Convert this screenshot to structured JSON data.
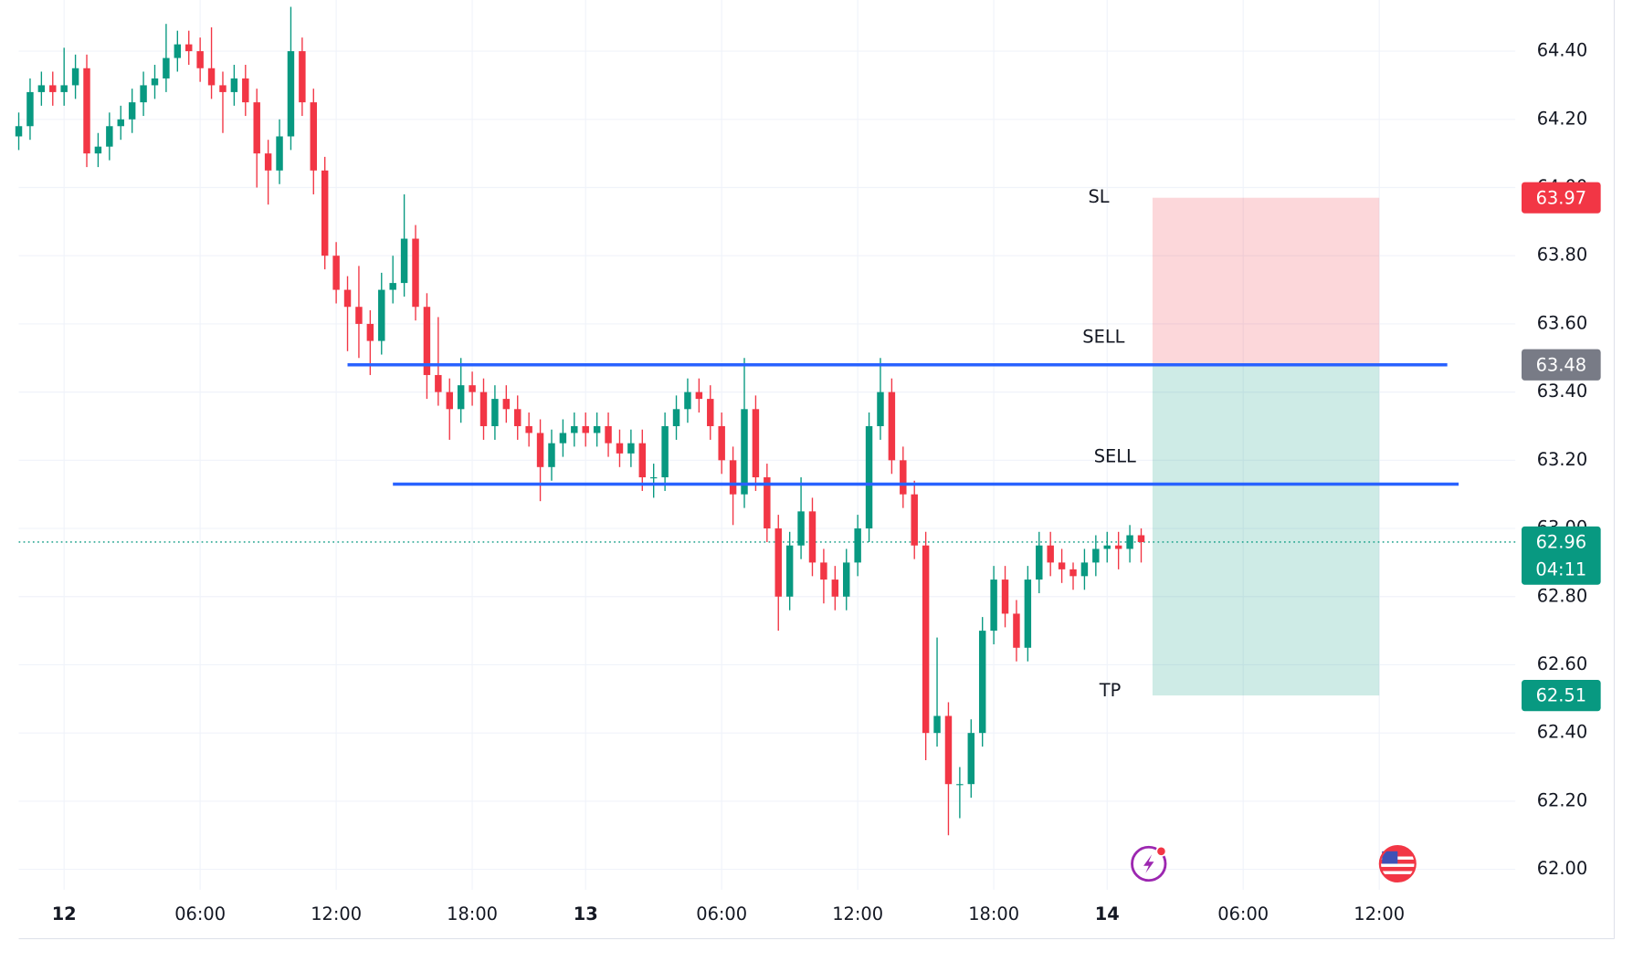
{
  "chart_data": {
    "type": "candlestick",
    "xlim": [
      0,
      132
    ],
    "ylim": [
      61.94,
      64.55
    ],
    "xticks": [
      {
        "value": 4,
        "label": "12"
      },
      {
        "value": 16,
        "label": "06:00"
      },
      {
        "value": 28,
        "label": "12:00"
      },
      {
        "value": 40,
        "label": "18:00"
      },
      {
        "value": 50,
        "label": "13"
      },
      {
        "value": 62,
        "label": "06:00"
      },
      {
        "value": 74,
        "label": "12:00"
      },
      {
        "value": 86,
        "label": "18:00"
      },
      {
        "value": 96,
        "label": "14"
      },
      {
        "value": 108,
        "label": "06:00"
      },
      {
        "value": 120,
        "label": "12:00"
      }
    ],
    "yticks": [
      {
        "value": 62,
        "label": "62.00"
      },
      {
        "value": 62.2,
        "label": "62.20"
      },
      {
        "value": 62.4,
        "label": "62.40"
      },
      {
        "value": 62.6,
        "label": "62.60"
      },
      {
        "value": 62.8,
        "label": "62.80"
      },
      {
        "value": 63,
        "label": "63.00"
      },
      {
        "value": 63.2,
        "label": "63.20"
      },
      {
        "value": 63.4,
        "label": "63.40"
      },
      {
        "value": 63.6,
        "label": "63.60"
      },
      {
        "value": 63.8,
        "label": "63.80"
      },
      {
        "value": 64,
        "label": "64.00"
      },
      {
        "value": 64.2,
        "label": "64.20"
      },
      {
        "value": 64.4,
        "label": "64.40"
      }
    ],
    "grid": true,
    "up_color": "#089981",
    "down_color": "#f23645",
    "candles": [
      [
        64.15,
        64.22,
        64.11,
        64.18
      ],
      [
        64.18,
        64.32,
        64.14,
        64.28
      ],
      [
        64.28,
        64.34,
        64.24,
        64.3
      ],
      [
        64.3,
        64.34,
        64.24,
        64.28
      ],
      [
        64.28,
        64.41,
        64.24,
        64.3
      ],
      [
        64.3,
        64.39,
        64.26,
        64.35
      ],
      [
        64.35,
        64.39,
        64.06,
        64.1
      ],
      [
        64.1,
        64.16,
        64.06,
        64.12
      ],
      [
        64.12,
        64.22,
        64.08,
        64.18
      ],
      [
        64.18,
        64.24,
        64.14,
        64.2
      ],
      [
        64.2,
        64.29,
        64.16,
        64.25
      ],
      [
        64.25,
        64.34,
        64.21,
        64.3
      ],
      [
        64.3,
        64.36,
        64.26,
        64.32
      ],
      [
        64.32,
        64.48,
        64.28,
        64.38
      ],
      [
        64.38,
        64.46,
        64.34,
        64.42
      ],
      [
        64.42,
        64.46,
        64.36,
        64.4
      ],
      [
        64.4,
        64.44,
        64.31,
        64.35
      ],
      [
        64.35,
        64.47,
        64.26,
        64.3
      ],
      [
        64.3,
        64.34,
        64.16,
        64.28
      ],
      [
        64.28,
        64.36,
        64.24,
        64.32
      ],
      [
        64.32,
        64.36,
        64.21,
        64.25
      ],
      [
        64.25,
        64.29,
        64.0,
        64.1
      ],
      [
        64.1,
        64.14,
        63.95,
        64.05
      ],
      [
        64.05,
        64.2,
        64.01,
        64.15
      ],
      [
        64.15,
        64.53,
        64.11,
        64.4
      ],
      [
        64.4,
        64.44,
        64.21,
        64.25
      ],
      [
        64.25,
        64.29,
        63.98,
        64.05
      ],
      [
        64.05,
        64.09,
        63.76,
        63.8
      ],
      [
        63.8,
        63.84,
        63.66,
        63.7
      ],
      [
        63.7,
        63.74,
        63.52,
        63.65
      ],
      [
        63.65,
        63.77,
        63.5,
        63.6
      ],
      [
        63.6,
        63.64,
        63.45,
        63.55
      ],
      [
        63.55,
        63.75,
        63.51,
        63.7
      ],
      [
        63.7,
        63.8,
        63.66,
        63.72
      ],
      [
        63.72,
        63.98,
        63.68,
        63.85
      ],
      [
        63.85,
        63.89,
        63.61,
        63.65
      ],
      [
        63.65,
        63.69,
        63.38,
        63.45
      ],
      [
        63.45,
        63.62,
        63.36,
        63.4
      ],
      [
        63.4,
        63.44,
        63.26,
        63.35
      ],
      [
        63.35,
        63.5,
        63.31,
        63.42
      ],
      [
        63.42,
        63.46,
        63.36,
        63.4
      ],
      [
        63.4,
        63.44,
        63.26,
        63.3
      ],
      [
        63.3,
        63.42,
        63.26,
        63.38
      ],
      [
        63.38,
        63.42,
        63.31,
        63.35
      ],
      [
        63.35,
        63.39,
        63.26,
        63.3
      ],
      [
        63.3,
        63.34,
        63.24,
        63.28
      ],
      [
        63.28,
        63.32,
        63.08,
        63.18
      ],
      [
        63.18,
        63.29,
        63.14,
        63.25
      ],
      [
        63.25,
        63.32,
        63.21,
        63.28
      ],
      [
        63.28,
        63.34,
        63.24,
        63.3
      ],
      [
        63.3,
        63.34,
        63.24,
        63.28
      ],
      [
        63.28,
        63.34,
        63.24,
        63.3
      ],
      [
        63.3,
        63.34,
        63.21,
        63.25
      ],
      [
        63.25,
        63.29,
        63.18,
        63.22
      ],
      [
        63.22,
        63.29,
        63.18,
        63.25
      ],
      [
        63.25,
        63.29,
        63.11,
        63.15
      ],
      [
        63.15,
        63.19,
        63.09,
        63.15
      ],
      [
        63.15,
        63.34,
        63.11,
        63.3
      ],
      [
        63.3,
        63.39,
        63.26,
        63.35
      ],
      [
        63.35,
        63.44,
        63.31,
        63.4
      ],
      [
        63.4,
        63.44,
        63.34,
        63.38
      ],
      [
        63.38,
        63.42,
        63.26,
        63.3
      ],
      [
        63.3,
        63.34,
        63.16,
        63.2
      ],
      [
        63.2,
        63.24,
        63.01,
        63.1
      ],
      [
        63.1,
        63.5,
        63.06,
        63.35
      ],
      [
        63.35,
        63.39,
        63.11,
        63.15
      ],
      [
        63.15,
        63.19,
        62.96,
        63.0
      ],
      [
        63.0,
        63.04,
        62.7,
        62.8
      ],
      [
        62.8,
        62.99,
        62.76,
        62.95
      ],
      [
        62.95,
        63.15,
        62.91,
        63.05
      ],
      [
        63.05,
        63.09,
        62.86,
        62.9
      ],
      [
        62.9,
        62.94,
        62.78,
        62.85
      ],
      [
        62.85,
        62.89,
        62.76,
        62.8
      ],
      [
        62.8,
        62.94,
        62.76,
        62.9
      ],
      [
        62.9,
        63.04,
        62.86,
        63.0
      ],
      [
        63.0,
        63.34,
        62.96,
        63.3
      ],
      [
        63.3,
        63.5,
        63.26,
        63.4
      ],
      [
        63.4,
        63.44,
        63.16,
        63.2
      ],
      [
        63.2,
        63.24,
        63.06,
        63.1
      ],
      [
        63.1,
        63.14,
        62.91,
        62.95
      ],
      [
        62.95,
        62.99,
        62.32,
        62.4
      ],
      [
        62.4,
        62.68,
        62.36,
        62.45
      ],
      [
        62.45,
        62.49,
        62.1,
        62.25
      ],
      [
        62.25,
        62.3,
        62.15,
        62.25
      ],
      [
        62.25,
        62.44,
        62.21,
        62.4
      ],
      [
        62.4,
        62.74,
        62.36,
        62.7
      ],
      [
        62.7,
        62.89,
        62.66,
        62.85
      ],
      [
        62.85,
        62.89,
        62.71,
        62.75
      ],
      [
        62.75,
        62.79,
        62.61,
        62.65
      ],
      [
        62.65,
        62.89,
        62.61,
        62.85
      ],
      [
        62.85,
        62.99,
        62.81,
        62.95
      ],
      [
        62.95,
        62.99,
        62.86,
        62.9
      ],
      [
        62.9,
        62.94,
        62.84,
        62.88
      ],
      [
        62.88,
        62.9,
        62.82,
        62.86
      ],
      [
        62.86,
        62.94,
        62.82,
        62.9
      ],
      [
        62.9,
        62.98,
        62.86,
        62.94
      ],
      [
        62.94,
        62.99,
        62.9,
        62.95
      ],
      [
        62.95,
        62.99,
        62.88,
        62.94
      ],
      [
        62.94,
        63.01,
        62.9,
        62.98
      ],
      [
        62.98,
        63.0,
        62.9,
        62.96
      ]
    ],
    "last_price": 62.96,
    "countdown": "04:11",
    "last_color": "#089981",
    "levels": [
      {
        "label": "SELL",
        "price": 63.48,
        "start": 29,
        "end": 126,
        "color": "#2962ff"
      },
      {
        "label": "SELL",
        "price": 63.13,
        "start": 33,
        "end": 127,
        "color": "#2962ff"
      }
    ],
    "position": {
      "start": 100,
      "end": 120,
      "stop": 63.97,
      "entry": 63.48,
      "target": 62.51,
      "stop_label": "SL",
      "target_label": "TP",
      "stop_color": "#f23645",
      "entry_color": "#787b86",
      "target_color": "#089981"
    }
  }
}
